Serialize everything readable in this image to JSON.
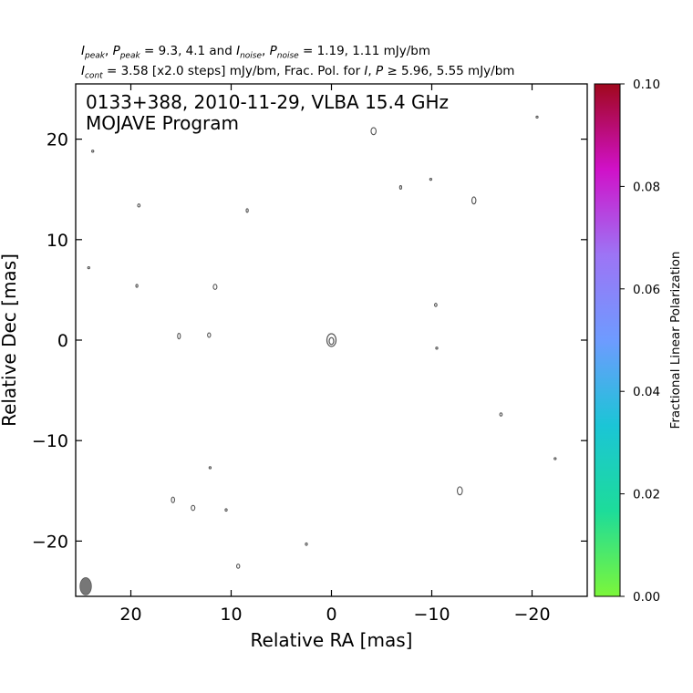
{
  "header": {
    "ipeak": "I",
    "ipeak_sub": "peak",
    "ppeak": "P",
    "ppeak_sub": "peak",
    "line1_mid": " = 9.3, 4.1 and ",
    "inoise": "I",
    "inoise_sub": "noise",
    "pnoise": "P",
    "pnoise_sub": "noise",
    "line1_end": " = 1.19, 1.11 mJy/bm",
    "icont": "I",
    "icont_sub": "cont",
    "line2_a": " = 3.58 [x2.0 steps] mJy/bm, Frac. Pol. for ",
    "line2_i": "I",
    "line2_b": ", ",
    "line2_p": "P",
    "line2_c": " ≥ 5.96, 5.55 mJy/bm"
  },
  "chart_data": {
    "type": "contour",
    "title_line1": "0133+388, 2010-11-29, VLBA 15.4 GHz",
    "title_line2": "MOJAVE Program",
    "xlabel": "Relative RA [mas]",
    "ylabel": "Relative Dec [mas]",
    "xlim": [
      25.5,
      -25.5
    ],
    "ylim": [
      -25.5,
      25.5
    ],
    "xticks": [
      20,
      10,
      0,
      -10,
      -20
    ],
    "xtick_labels": [
      "20",
      "10",
      "0",
      "−10",
      "−20"
    ],
    "yticks": [
      20,
      10,
      0,
      -10,
      -20
    ],
    "ytick_labels": [
      "20",
      "10",
      "0",
      "−10",
      "−20"
    ],
    "core": {
      "x": 0,
      "y": 0
    },
    "noise_contours": [
      {
        "x": -4.2,
        "y": 20.8,
        "rx": 0.25,
        "ry": 0.35
      },
      {
        "x": -20.5,
        "y": 22.2,
        "rx": 0.08,
        "ry": 0.1
      },
      {
        "x": 23.8,
        "y": 18.8,
        "rx": 0.08,
        "ry": 0.1
      },
      {
        "x": -6.9,
        "y": 15.2,
        "rx": 0.1,
        "ry": 0.18
      },
      {
        "x": -9.9,
        "y": 16.0,
        "rx": 0.08,
        "ry": 0.1
      },
      {
        "x": -14.2,
        "y": 13.9,
        "rx": 0.2,
        "ry": 0.35
      },
      {
        "x": 19.2,
        "y": 13.4,
        "rx": 0.12,
        "ry": 0.15
      },
      {
        "x": 8.4,
        "y": 12.9,
        "rx": 0.1,
        "ry": 0.18
      },
      {
        "x": 24.2,
        "y": 7.2,
        "rx": 0.08,
        "ry": 0.1
      },
      {
        "x": 19.4,
        "y": 5.4,
        "rx": 0.08,
        "ry": 0.14
      },
      {
        "x": 11.6,
        "y": 5.3,
        "rx": 0.18,
        "ry": 0.25
      },
      {
        "x": -10.4,
        "y": 3.5,
        "rx": 0.12,
        "ry": 0.16
      },
      {
        "x": 15.2,
        "y": 0.4,
        "rx": 0.14,
        "ry": 0.28
      },
      {
        "x": 12.2,
        "y": 0.5,
        "rx": 0.15,
        "ry": 0.22
      },
      {
        "x": -10.5,
        "y": -0.8,
        "rx": 0.05,
        "ry": 0.08
      },
      {
        "x": -16.9,
        "y": -7.4,
        "rx": 0.12,
        "ry": 0.16
      },
      {
        "x": -22.3,
        "y": -11.8,
        "rx": 0.06,
        "ry": 0.08
      },
      {
        "x": 12.1,
        "y": -12.7,
        "rx": 0.05,
        "ry": 0.05
      },
      {
        "x": -12.8,
        "y": -15.0,
        "rx": 0.25,
        "ry": 0.4
      },
      {
        "x": 15.8,
        "y": -15.9,
        "rx": 0.16,
        "ry": 0.28
      },
      {
        "x": 13.8,
        "y": -16.7,
        "rx": 0.18,
        "ry": 0.25
      },
      {
        "x": 10.5,
        "y": -16.9,
        "rx": 0.08,
        "ry": 0.12
      },
      {
        "x": 2.5,
        "y": -20.3,
        "rx": 0.08,
        "ry": 0.12
      },
      {
        "x": 9.3,
        "y": -22.5,
        "rx": 0.15,
        "ry": 0.2
      }
    ],
    "beam": {
      "x": 24.5,
      "y": -24.5,
      "major": 0.9,
      "minor": 0.6,
      "pa": 0
    },
    "colorbar": {
      "label": "Fractional Linear Polarization",
      "min": 0.0,
      "max": 0.1,
      "ticks": [
        0.0,
        0.02,
        0.04,
        0.06,
        0.08,
        0.1
      ],
      "tick_labels": [
        "0.00",
        "0.02",
        "0.04",
        "0.06",
        "0.08",
        "0.10"
      ],
      "colors": [
        "#7cf63a",
        "#1ddc9a",
        "#1bc5d6",
        "#6e9bff",
        "#9d74f5",
        "#d011c8",
        "#a0081d"
      ]
    },
    "contour_color": "#555555",
    "beam_color": "#777777"
  }
}
